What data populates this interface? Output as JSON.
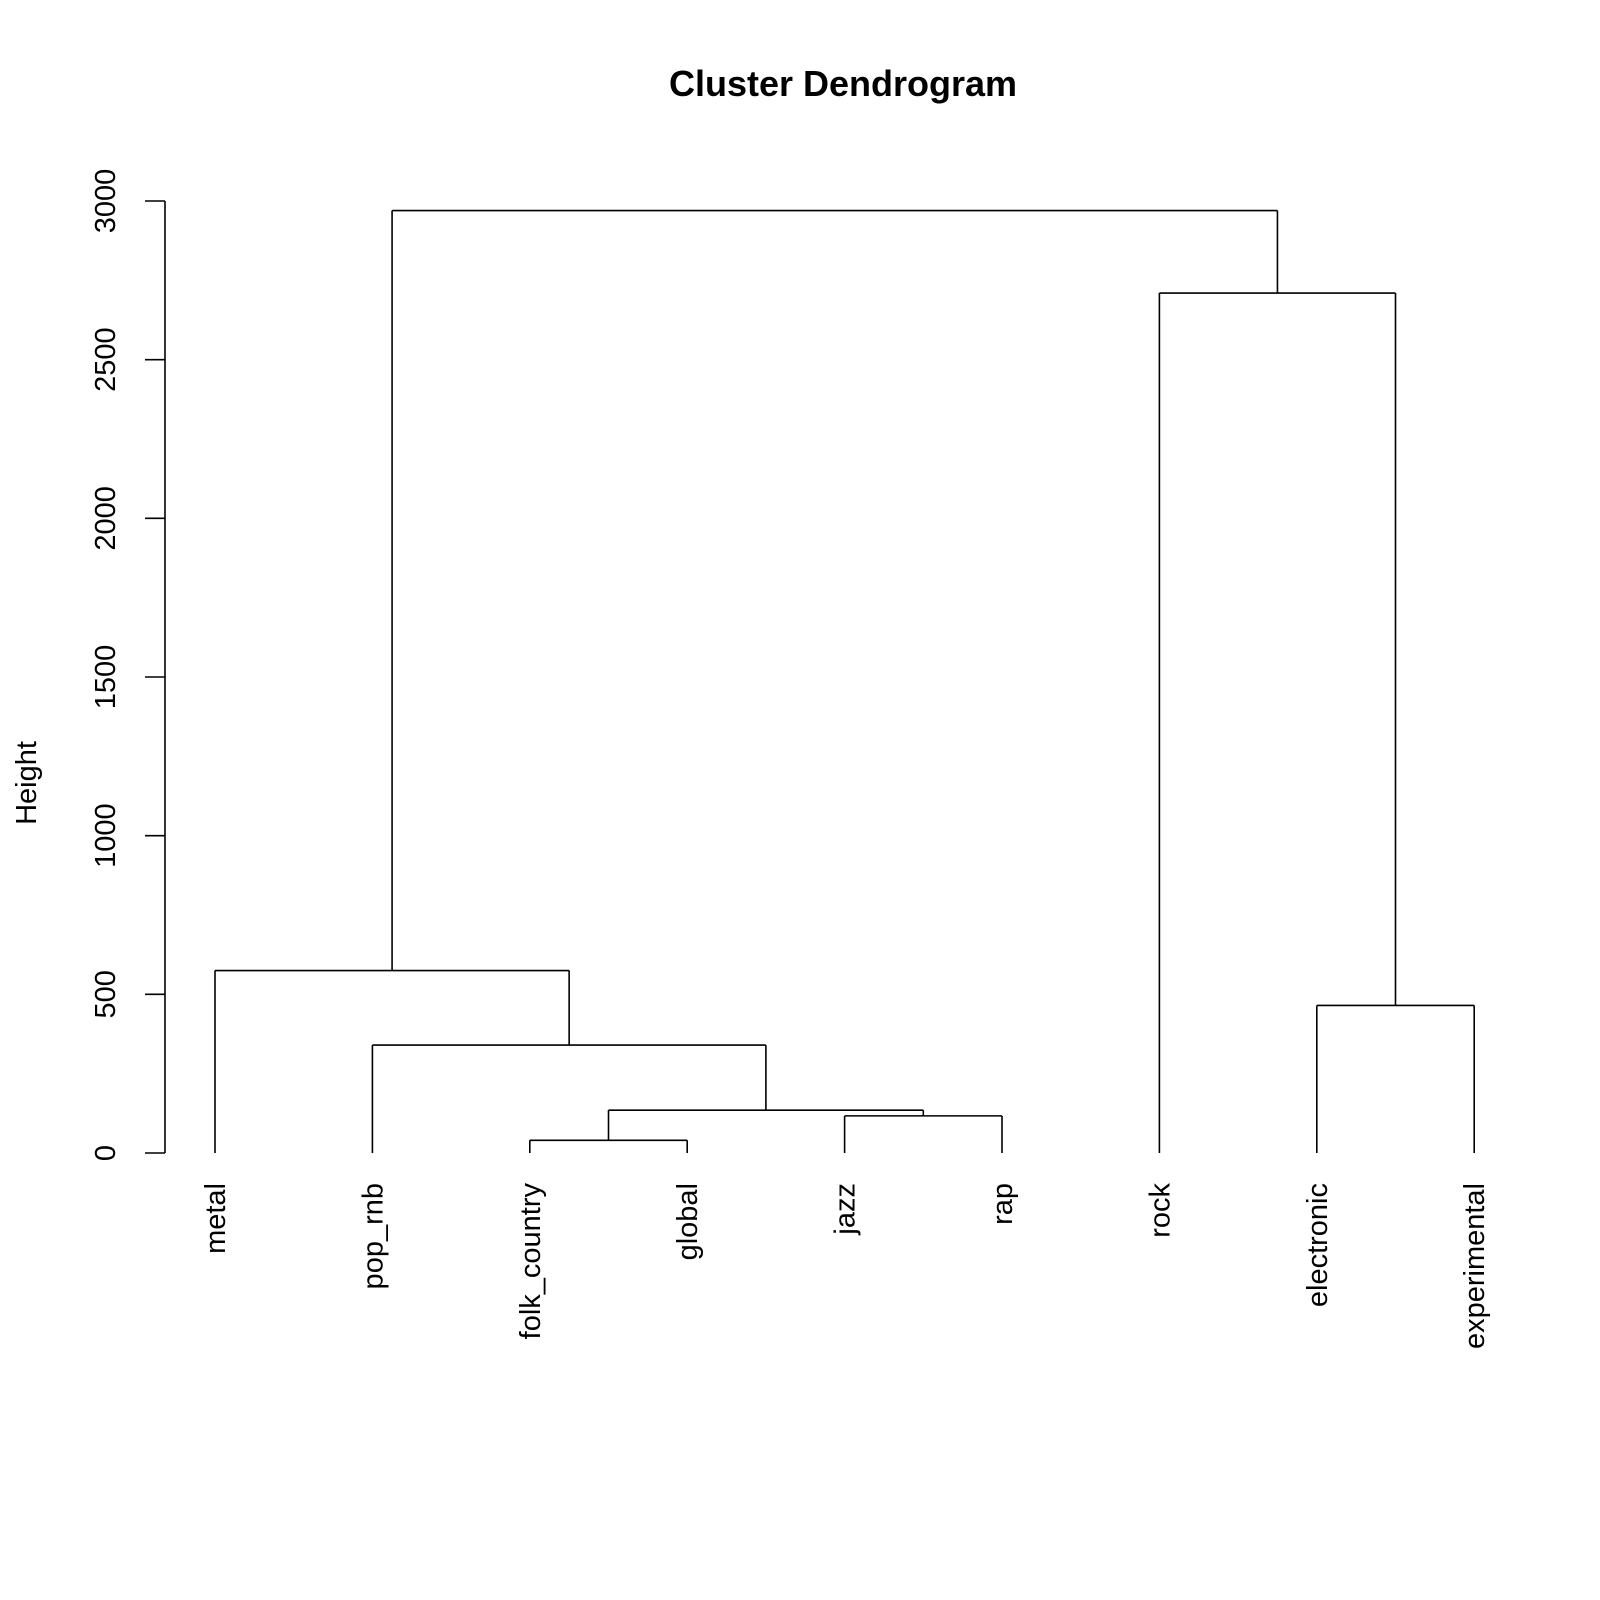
{
  "chart_data": {
    "type": "dendrogram",
    "title": "Cluster Dendrogram",
    "ylabel": "Height",
    "ylim": [
      0,
      3000
    ],
    "yticks": [
      0,
      500,
      1000,
      1500,
      2000,
      2500,
      3000
    ],
    "leaves": [
      "metal",
      "pop_rnb",
      "folk_country",
      "global",
      "jazz",
      "rap",
      "rock",
      "electronic",
      "experimental"
    ],
    "merges": [
      {
        "left": "folk_country",
        "right": "global",
        "height": 40
      },
      {
        "left": "jazz",
        "right": "rap",
        "height": 117
      },
      {
        "left": "folk_country+global",
        "right": "jazz+rap",
        "height": 135
      },
      {
        "left": "pop_rnb",
        "right": "folk_country+global+jazz+rap",
        "height": 340
      },
      {
        "left": "electronic",
        "right": "experimental",
        "height": 465
      },
      {
        "left": "metal",
        "right": "pop_rnb+folk_country+global+jazz+rap",
        "height": 575
      },
      {
        "left": "rock",
        "right": "electronic+experimental",
        "height": 2710
      },
      {
        "left": "metal+pop_rnb+folk_country+global+jazz+rap",
        "right": "rock+electronic+experimental",
        "height": 2970
      }
    ],
    "colors": {
      "line": "#000000",
      "background": "#ffffff"
    }
  }
}
